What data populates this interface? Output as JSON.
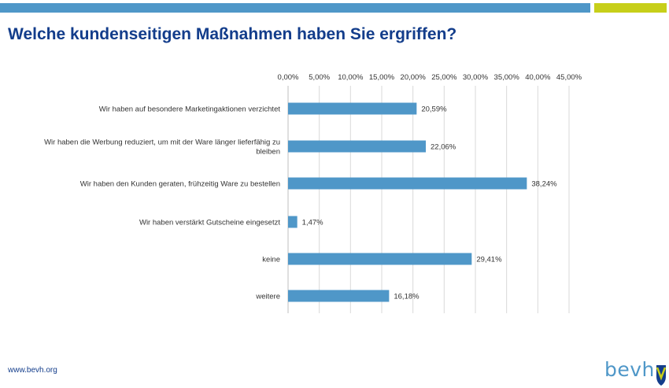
{
  "page": {
    "title": "Welche kundenseitigen Maßnahmen haben Sie ergriffen?",
    "footer_url": "www.bevh.org",
    "logo_text": "bevh",
    "colors": {
      "accent_blue": "#4f97c8",
      "accent_green": "#c7cf1a",
      "title_blue": "#133d8b",
      "bar": "#4f97c8"
    }
  },
  "chart_data": {
    "type": "bar",
    "orientation": "horizontal",
    "title": "",
    "xlabel": "",
    "ylabel": "",
    "xlim": [
      0,
      45
    ],
    "x_ticks": [
      "0,00%",
      "5,00%",
      "10,00%",
      "15,00%",
      "20,00%",
      "25,00%",
      "30,00%",
      "35,00%",
      "40,00%",
      "45,00%"
    ],
    "x_axis_position": "top",
    "grid": "vertical",
    "categories": [
      [
        "Wir haben auf besondere Marketingaktionen verzichtet"
      ],
      [
        "Wir haben die Werbung reduziert, um mit der Ware länger lieferfähig zu",
        "bleiben"
      ],
      [
        "Wir haben den Kunden geraten, frühzeitig Ware zu bestellen"
      ],
      [
        "Wir haben verstärkt Gutscheine eingesetzt"
      ],
      [
        "keine"
      ],
      [
        "weitere"
      ]
    ],
    "values": [
      20.59,
      22.06,
      38.24,
      1.47,
      29.41,
      16.18
    ],
    "value_labels": [
      "20,59%",
      "22,06%",
      "38,24%",
      "1,47%",
      "29,41%",
      "16,18%"
    ]
  }
}
